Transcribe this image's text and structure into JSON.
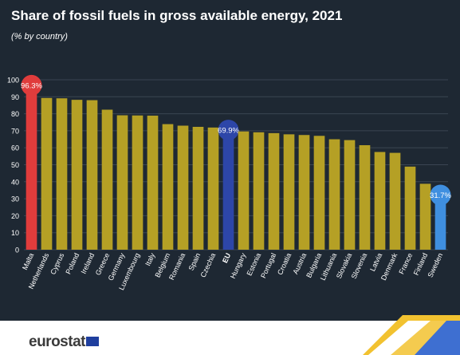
{
  "title": "Share of fossil fuels in gross available energy, 2021",
  "subtitle": "(% by country)",
  "brand": "eurostat",
  "colors": {
    "background": "#1e2833",
    "bar_default": "#b5a025",
    "bar_max": "#e03c3c",
    "bar_eu": "#2d46a8",
    "bar_min": "#3f8fe0",
    "gridline": "#3a4552",
    "axis_text": "#ffffff"
  },
  "chart_data": {
    "type": "bar",
    "title": "Share of fossil fuels in gross available energy, 2021",
    "subtitle": "(% by country)",
    "xlabel": "",
    "ylabel": "",
    "ylim": [
      0,
      100
    ],
    "yticks": [
      0,
      10,
      20,
      30,
      40,
      50,
      60,
      70,
      80,
      90,
      100
    ],
    "grid": true,
    "categories": [
      "Malta",
      "Netherlands",
      "Cyprus",
      "Poland",
      "Ireland",
      "Greece",
      "Germany",
      "Luxembourg",
      "Italy",
      "Belgium",
      "Romania",
      "Spain",
      "Czechia",
      "EU",
      "Hungary",
      "Estonia",
      "Portugal",
      "Croatia",
      "Austria",
      "Bulgaria",
      "Lithuania",
      "Slovakia",
      "Slovenia",
      "Latvia",
      "Denmark",
      "France",
      "Finland",
      "Sweden"
    ],
    "values": [
      96.3,
      89.3,
      89.1,
      88.2,
      88.0,
      82.4,
      79.1,
      79.0,
      78.9,
      73.9,
      73.0,
      72.3,
      71.9,
      69.9,
      69.6,
      69.1,
      68.6,
      67.9,
      67.5,
      67.0,
      65.0,
      64.5,
      61.5,
      57.5,
      57.0,
      48.9,
      38.8,
      31.7
    ],
    "highlights": [
      {
        "category": "Malta",
        "label": "96.3%",
        "role": "max"
      },
      {
        "category": "EU",
        "label": "69.9%",
        "role": "eu"
      },
      {
        "category": "Sweden",
        "label": "31.7%",
        "role": "min"
      }
    ]
  }
}
